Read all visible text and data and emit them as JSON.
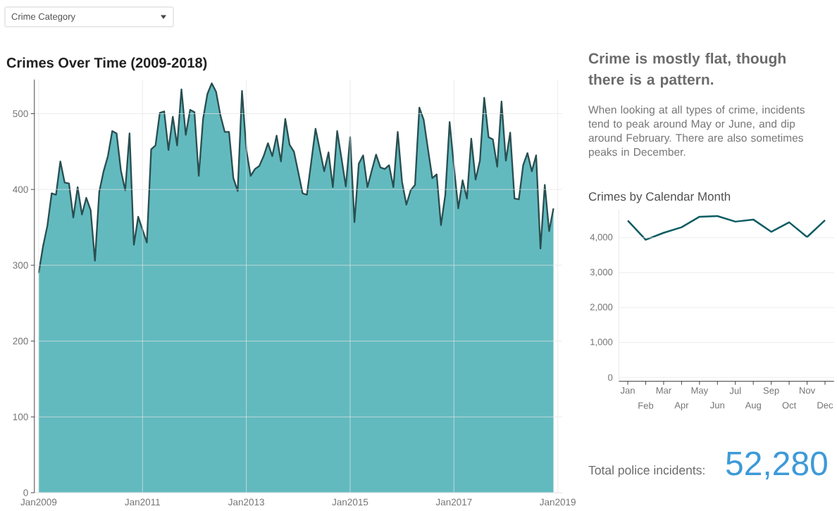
{
  "chart_data": [
    {
      "type": "other",
      "annotations": [
        "Crime Category"
      ]
    },
    {
      "type": "area",
      "title": "Crimes Over Time (2009-2018)",
      "x": [
        "2009-01",
        "2009-02",
        "2009-03",
        "2009-04",
        "2009-05",
        "2009-06",
        "2009-07",
        "2009-08",
        "2009-09",
        "2009-10",
        "2009-11",
        "2009-12",
        "2010-01",
        "2010-02",
        "2010-03",
        "2010-04",
        "2010-05",
        "2010-06",
        "2010-07",
        "2010-08",
        "2010-09",
        "2010-10",
        "2010-11",
        "2010-12",
        "2011-01",
        "2011-02",
        "2011-03",
        "2011-04",
        "2011-05",
        "2011-06",
        "2011-07",
        "2011-08",
        "2011-09",
        "2011-10",
        "2011-11",
        "2011-12",
        "2012-01",
        "2012-02",
        "2012-03",
        "2012-04",
        "2012-05",
        "2012-06",
        "2012-07",
        "2012-08",
        "2012-09",
        "2012-10",
        "2012-11",
        "2012-12",
        "2013-01",
        "2013-02",
        "2013-03",
        "2013-04",
        "2013-05",
        "2013-06",
        "2013-07",
        "2013-08",
        "2013-09",
        "2013-10",
        "2013-11",
        "2013-12",
        "2014-01",
        "2014-02",
        "2014-03",
        "2014-04",
        "2014-05",
        "2014-06",
        "2014-07",
        "2014-08",
        "2014-09",
        "2014-10",
        "2014-11",
        "2014-12",
        "2015-01",
        "2015-02",
        "2015-03",
        "2015-04",
        "2015-05",
        "2015-06",
        "2015-07",
        "2015-08",
        "2015-09",
        "2015-10",
        "2015-11",
        "2015-12",
        "2016-01",
        "2016-02",
        "2016-03",
        "2016-04",
        "2016-05",
        "2016-06",
        "2016-07",
        "2016-08",
        "2016-09",
        "2016-10",
        "2016-11",
        "2016-12",
        "2017-01",
        "2017-02",
        "2017-03",
        "2017-04",
        "2017-05",
        "2017-06",
        "2017-07",
        "2017-08",
        "2017-09",
        "2017-10",
        "2017-11",
        "2017-12",
        "2018-01",
        "2018-02",
        "2018-03",
        "2018-04",
        "2018-05",
        "2018-06",
        "2018-07",
        "2018-08",
        "2018-09",
        "2018-10",
        "2018-11",
        "2018-12"
      ],
      "values": [
        290,
        325,
        352,
        395,
        393,
        437,
        409,
        408,
        363,
        403,
        367,
        389,
        373,
        306,
        397,
        424,
        444,
        477,
        474,
        425,
        399,
        474,
        327,
        364,
        347,
        330,
        453,
        458,
        501,
        503,
        452,
        496,
        458,
        532,
        472,
        505,
        502,
        418,
        493,
        526,
        540,
        529,
        498,
        476,
        476,
        415,
        398,
        530,
        452,
        418,
        427,
        431,
        444,
        461,
        444,
        471,
        437,
        493,
        459,
        450,
        423,
        395,
        393,
        436,
        480,
        452,
        424,
        449,
        403,
        477,
        441,
        404,
        469,
        357,
        434,
        445,
        403,
        425,
        446,
        429,
        427,
        432,
        403,
        476,
        410,
        380,
        399,
        406,
        508,
        492,
        453,
        415,
        420,
        353,
        393,
        489,
        430,
        375,
        412,
        388,
        467,
        413,
        438,
        521,
        469,
        466,
        430,
        516,
        438,
        475,
        388,
        387,
        432,
        448,
        424,
        445,
        322,
        406,
        345,
        375
      ],
      "color": "#62babf",
      "xlim": [
        "2008-12",
        "2019-02"
      ],
      "xticks": [
        {
          "value": "2009-01",
          "label": "Jan2009"
        },
        {
          "value": "2011-01",
          "label": "Jan2011"
        },
        {
          "value": "2013-01",
          "label": "Jan2013"
        },
        {
          "value": "2015-01",
          "label": "Jan2015"
        },
        {
          "value": "2017-01",
          "label": "Jan2017"
        },
        {
          "value": "2019-01",
          "label": "Jan2019"
        }
      ],
      "ylim": [
        0,
        545
      ],
      "yticks": [
        0,
        100,
        200,
        300,
        400,
        500
      ],
      "grid": true
    },
    {
      "type": "other",
      "title": "Crime is mostly flat, though there is a pattern.",
      "subtitle": "When looking at all types of crime, incidents tend to peak around May or June, and dip around February. There are also sometimes peaks in December."
    },
    {
      "type": "line",
      "title": "Crimes by Calendar Month",
      "categories": [
        "Jan",
        "Feb",
        "Mar",
        "Apr",
        "May",
        "Jun",
        "Jul",
        "Aug",
        "Sep",
        "Oct",
        "Nov",
        "Dec"
      ],
      "values": [
        4490,
        3940,
        4140,
        4300,
        4600,
        4620,
        4460,
        4520,
        4170,
        4440,
        4020,
        4500
      ],
      "color": "#0d5c63",
      "ylim": [
        -110,
        4800
      ],
      "yticks": [
        0,
        {
          "value": 1000,
          "label": "1,000"
        },
        {
          "value": 2000,
          "label": "2,000"
        },
        {
          "value": 3000,
          "label": "3,000"
        },
        {
          "value": 4000,
          "label": "4,000"
        }
      ],
      "grid": "y"
    },
    {
      "type": "other",
      "annotations": [
        "Total police incidents:",
        "52,280"
      ]
    }
  ]
}
